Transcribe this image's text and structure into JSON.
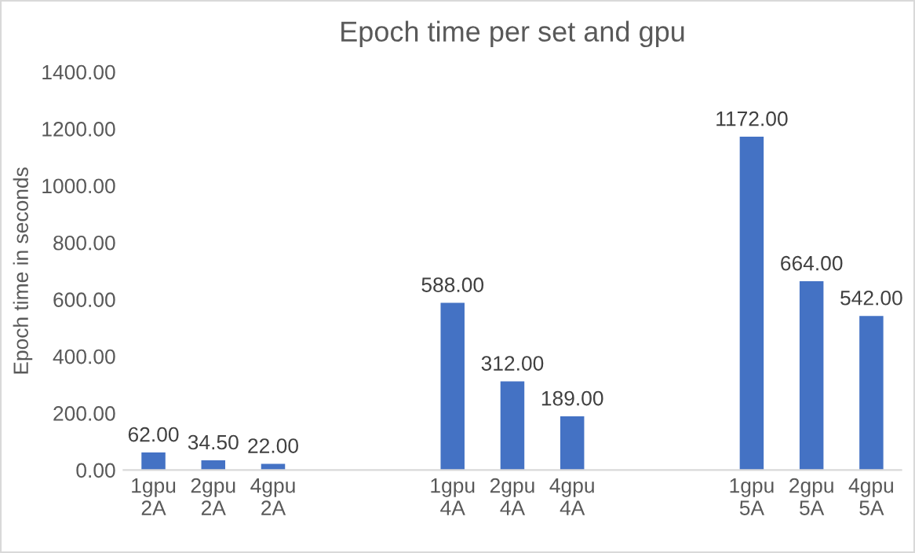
{
  "chart_data": {
    "type": "bar",
    "title": "Epoch time per set and gpu",
    "ylabel": "Epoch time in seconds",
    "categories": [
      "1gpu\n2A",
      "2gpu\n2A",
      "4gpu\n2A",
      null,
      null,
      "1gpu\n4A",
      "2gpu\n4A",
      "4gpu\n4A",
      null,
      null,
      "1gpu\n5A",
      "2gpu\n5A",
      "4gpu\n5A"
    ],
    "values": [
      62,
      34.5,
      22,
      null,
      null,
      588,
      312,
      189,
      null,
      null,
      1172,
      664,
      542
    ],
    "value_labels": [
      "62.00",
      "34.50",
      "22.00",
      null,
      null,
      "588.00",
      "312.00",
      "189.00",
      null,
      null,
      "1172.00",
      "664.00",
      "542.00"
    ],
    "color": "#4472c4",
    "ylim": [
      0,
      1400
    ],
    "yticks": [
      {
        "value": 0,
        "label": "0.00"
      },
      {
        "value": 200,
        "label": "200.00"
      },
      {
        "value": 400,
        "label": "400.00"
      },
      {
        "value": 600,
        "label": "600.00"
      },
      {
        "value": 800,
        "label": "800.00"
      },
      {
        "value": 1000,
        "label": "1000.00"
      },
      {
        "value": 1200,
        "label": "1200.00"
      },
      {
        "value": 1400,
        "label": "1400.00"
      }
    ],
    "grid": false
  }
}
